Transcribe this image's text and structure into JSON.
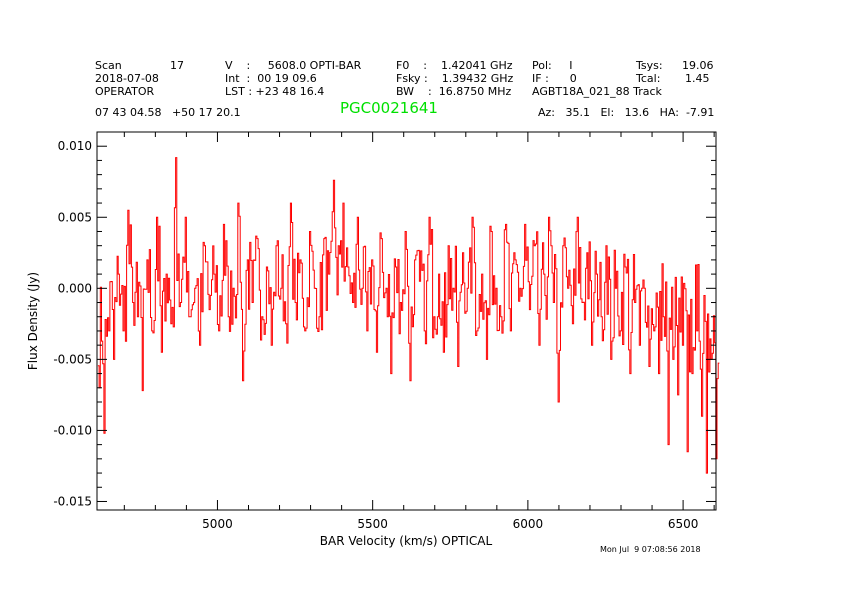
{
  "header": {
    "scan_label": "Scan",
    "scan": "17",
    "date": "2018-07-08",
    "observer": "OPERATOR",
    "v": "V    :     5608.0 OPTI-BAR",
    "int": "Int  :  00 19 09.6",
    "lst": "LST : +23 48 16.4",
    "f0": "F0    :    1.42041 GHz",
    "fsky": "Fsky :    1.39432 GHz",
    "bw": "BW    :  16.8750 MHz",
    "pol": "Pol:     I",
    "if": "IF :      0",
    "project": "AGBT18A_021_88 Track",
    "tsys_label": "Tsys:",
    "tsys": "19.06",
    "tcal_label": "Tcal:",
    "tcal": "1.45",
    "coords": "07 43 04.58   +50 17 20.1",
    "source": "PGC0021641",
    "azel": "Az:   35.1   El:   13.6   HA:  -7.91"
  },
  "footer": {
    "timestamp": "Mon Jul  9 07:08:56 2018"
  },
  "colors": {
    "line": "#ff0000",
    "source": "#00e000"
  },
  "chart_data": {
    "type": "line",
    "style": "histogram-step",
    "xlabel": "BAR Velocity (km/s) OPTICAL",
    "ylabel": "Flux Density (Jy)",
    "xlim": [
      4612,
      6606
    ],
    "ylim": [
      -0.0156,
      0.011
    ],
    "xticks": [
      5000,
      5500,
      6000,
      6500
    ],
    "xtick_labels": [
      "5000",
      "5500",
      "6000",
      "6500"
    ],
    "yticks": [
      0.01,
      0.005,
      0.0,
      -0.005,
      -0.01,
      -0.015
    ],
    "ytick_labels": [
      "0.010",
      "0.005",
      "0.000",
      "-0.005",
      "-0.010",
      "-0.015"
    ],
    "grid": false,
    "series": [
      {
        "name": "spectrum",
        "x_start": 4615,
        "x_step": 15.4,
        "values": [
          -0.007,
          -0.0102,
          -0.003,
          -0.005,
          0.001,
          -0.003,
          0.0055,
          -0.001,
          -0.002,
          -0.0072,
          0.002,
          -0.003,
          0.005,
          -0.0045,
          0.001,
          -0.0025,
          0.0092,
          -0.001,
          0.005,
          -0.002,
          0.0,
          -0.004,
          0.003,
          -0.0015,
          0.001,
          -0.003,
          0.0045,
          -0.002,
          0.0,
          0.006,
          -0.0065,
          0.002,
          -0.001,
          0.0035,
          -0.002,
          0.0015,
          -0.004,
          0.003,
          0.0,
          -0.0025,
          0.006,
          -0.001,
          0.002,
          -0.003,
          0.004,
          0.0,
          -0.002,
          0.0035,
          0.001,
          0.0076,
          0.003,
          0.006,
          0.0015,
          -0.001,
          0.005,
          0.0,
          -0.003,
          0.002,
          -0.0045,
          0.0035,
          0.0,
          -0.006,
          0.0015,
          -0.001,
          0.004,
          -0.0065,
          0.002,
          0.0005,
          -0.003,
          0.005,
          -0.002,
          0.001,
          -0.0045,
          0.003,
          0.0,
          -0.0055,
          0.0025,
          0.0,
          0.005,
          -0.003,
          0.001,
          -0.005,
          0.004,
          0.0,
          -0.002,
          0.0045,
          -0.003,
          0.002,
          0.0,
          0.0045,
          -0.0015,
          0.003,
          -0.004,
          0.001,
          0.005,
          -0.001,
          -0.008,
          0.003,
          0.0,
          -0.0025,
          0.005,
          -0.001,
          0.0025,
          -0.004,
          0.001,
          -0.002,
          0.003,
          -0.005,
          0.0,
          -0.003,
          0.0015,
          -0.006,
          -0.001,
          -0.004,
          0.0,
          -0.0055,
          -0.003,
          -0.006,
          -0.002,
          -0.011,
          -0.005,
          -0.0075,
          -0.004,
          -0.0115,
          -0.006,
          -0.003,
          -0.009,
          -0.013,
          -0.005,
          -0.012
        ]
      }
    ]
  }
}
